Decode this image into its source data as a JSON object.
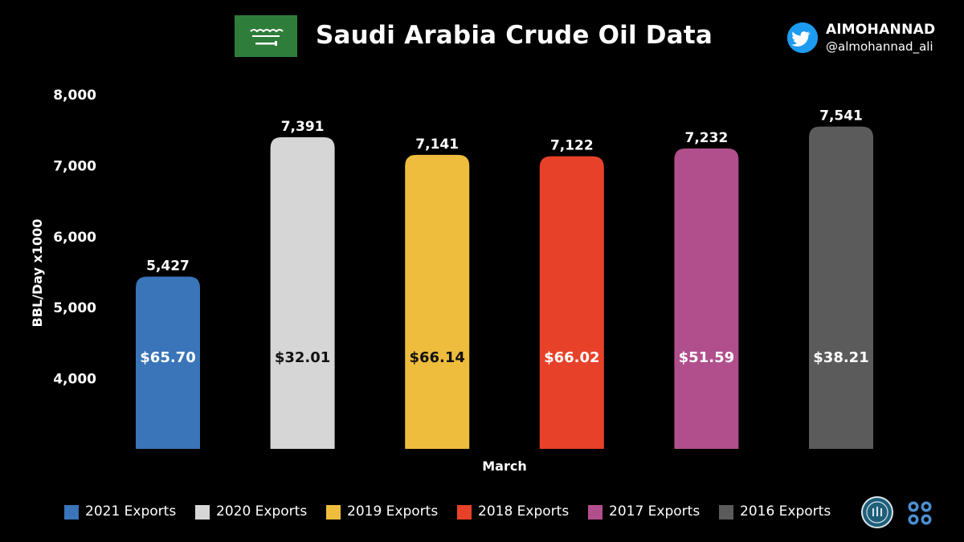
{
  "header": {
    "title": "Saudi Arabia Crude Oil Data",
    "brand_name": "AlMOHANNAD",
    "brand_handle": "@almohannad_ali"
  },
  "icons": {
    "flag": "saudi-flag-icon",
    "twitter": "twitter-icon",
    "seal": "seal-icon",
    "opec": "opec-logo-icon"
  },
  "chart_data": {
    "type": "bar",
    "title": "Saudi Arabia Crude Oil Data",
    "xlabel": "March",
    "ylabel": "BBL/Day x1000",
    "ylim": [
      3000,
      8000
    ],
    "yticks": [
      4000,
      5000,
      6000,
      7000,
      8000
    ],
    "ytick_labels": [
      "4,000",
      "5,000",
      "6,000",
      "7,000",
      "8,000"
    ],
    "grid": false,
    "legend_position": "bottom",
    "categories": [
      "2021 Exports",
      "2020 Exports",
      "2019 Exports",
      "2018 Exports",
      "2017 Exports",
      "2016 Exports"
    ],
    "values": [
      5427,
      7391,
      7141,
      7122,
      7232,
      7541
    ],
    "value_labels": [
      "5,427",
      "7,391",
      "7,141",
      "7,122",
      "7,232",
      "7,541"
    ],
    "price_labels": [
      "$65.70",
      "$32.01",
      "$66.14",
      "$66.02",
      "$51.59",
      "$38.21"
    ],
    "colors": [
      "#3a74b9",
      "#d6d6d6",
      "#efbd3d",
      "#e8412a",
      "#b14f8d",
      "#5b5b5b"
    ],
    "price_text_colors": [
      "#ffffff",
      "#111111",
      "#111111",
      "#ffffff",
      "#ffffff",
      "#ffffff"
    ]
  }
}
